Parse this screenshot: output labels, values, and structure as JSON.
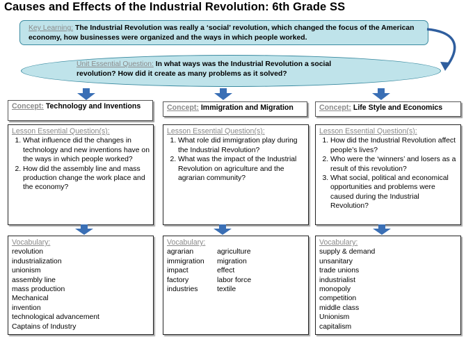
{
  "title": "Causes and Effects of the Industrial Revolution: 6th Grade SS",
  "key_learning": {
    "label": "Key Learning:",
    "text": "The Industrial Revolution was really a ‘social’ revolution, which changed the focus of the American economy, how businesses were organized and the ways in which people worked."
  },
  "unit_question": {
    "label": "Unit Essential Question:",
    "text": "In what ways was the Industrial Revolution a social revolution?  How did it create as many problems as it solved?"
  },
  "columns": [
    {
      "concept_label": "Concept:",
      "concept": "Technology and Inventions",
      "lesson_label": "Lesson Essential Question(s):",
      "questions": [
        "What influence did the changes in technology and new inventions have on the ways in which people worked?",
        "How did the assembly line and mass production change the work place and the economy?"
      ],
      "vocab_label": "Vocabulary:",
      "vocab": [
        "revolution",
        "industrialization",
        "unionism",
        "assembly line",
        "mass production",
        "Mechanical",
        "invention",
        "technological advancement",
        "Captains of Industry"
      ]
    },
    {
      "concept_label": "Concept:",
      "concept": "Immigration and Migration",
      "lesson_label": "Lesson Essential Question(s):",
      "questions": [
        "What role did immigration play during the Industrial Revolution?",
        "What was the impact of the Industrial Revolution on agriculture and the agrarian community?"
      ],
      "vocab_label": "Vocabulary:",
      "vocab": [
        "agrarian",
        "agriculture",
        "immigration",
        "migration",
        "impact",
        "effect",
        "factory",
        "labor force",
        "industries",
        "textile"
      ]
    },
    {
      "concept_label": "Concept:",
      "concept": "Life Style and Economics",
      "lesson_label": "Lesson Essential Question(s):",
      "questions": [
        "How did the Industrial Revolution affect people’s lives?",
        "Who were the ‘winners’ and losers as a result of this revolution?",
        "What social, political and economical opportunities and problems were caused during the Industrial Revolution?"
      ],
      "vocab_label": "Vocabulary:",
      "vocab": [
        "supply & demand",
        "unsanitary",
        "trade unions",
        "industrialist",
        "monopoly",
        "competition",
        "middle class",
        "Unionism",
        "capitalism"
      ]
    }
  ],
  "colors": {
    "shape_fill": "#bfe3ea",
    "shape_border": "#3a8aa0",
    "arrow": "#3a6fb5"
  }
}
